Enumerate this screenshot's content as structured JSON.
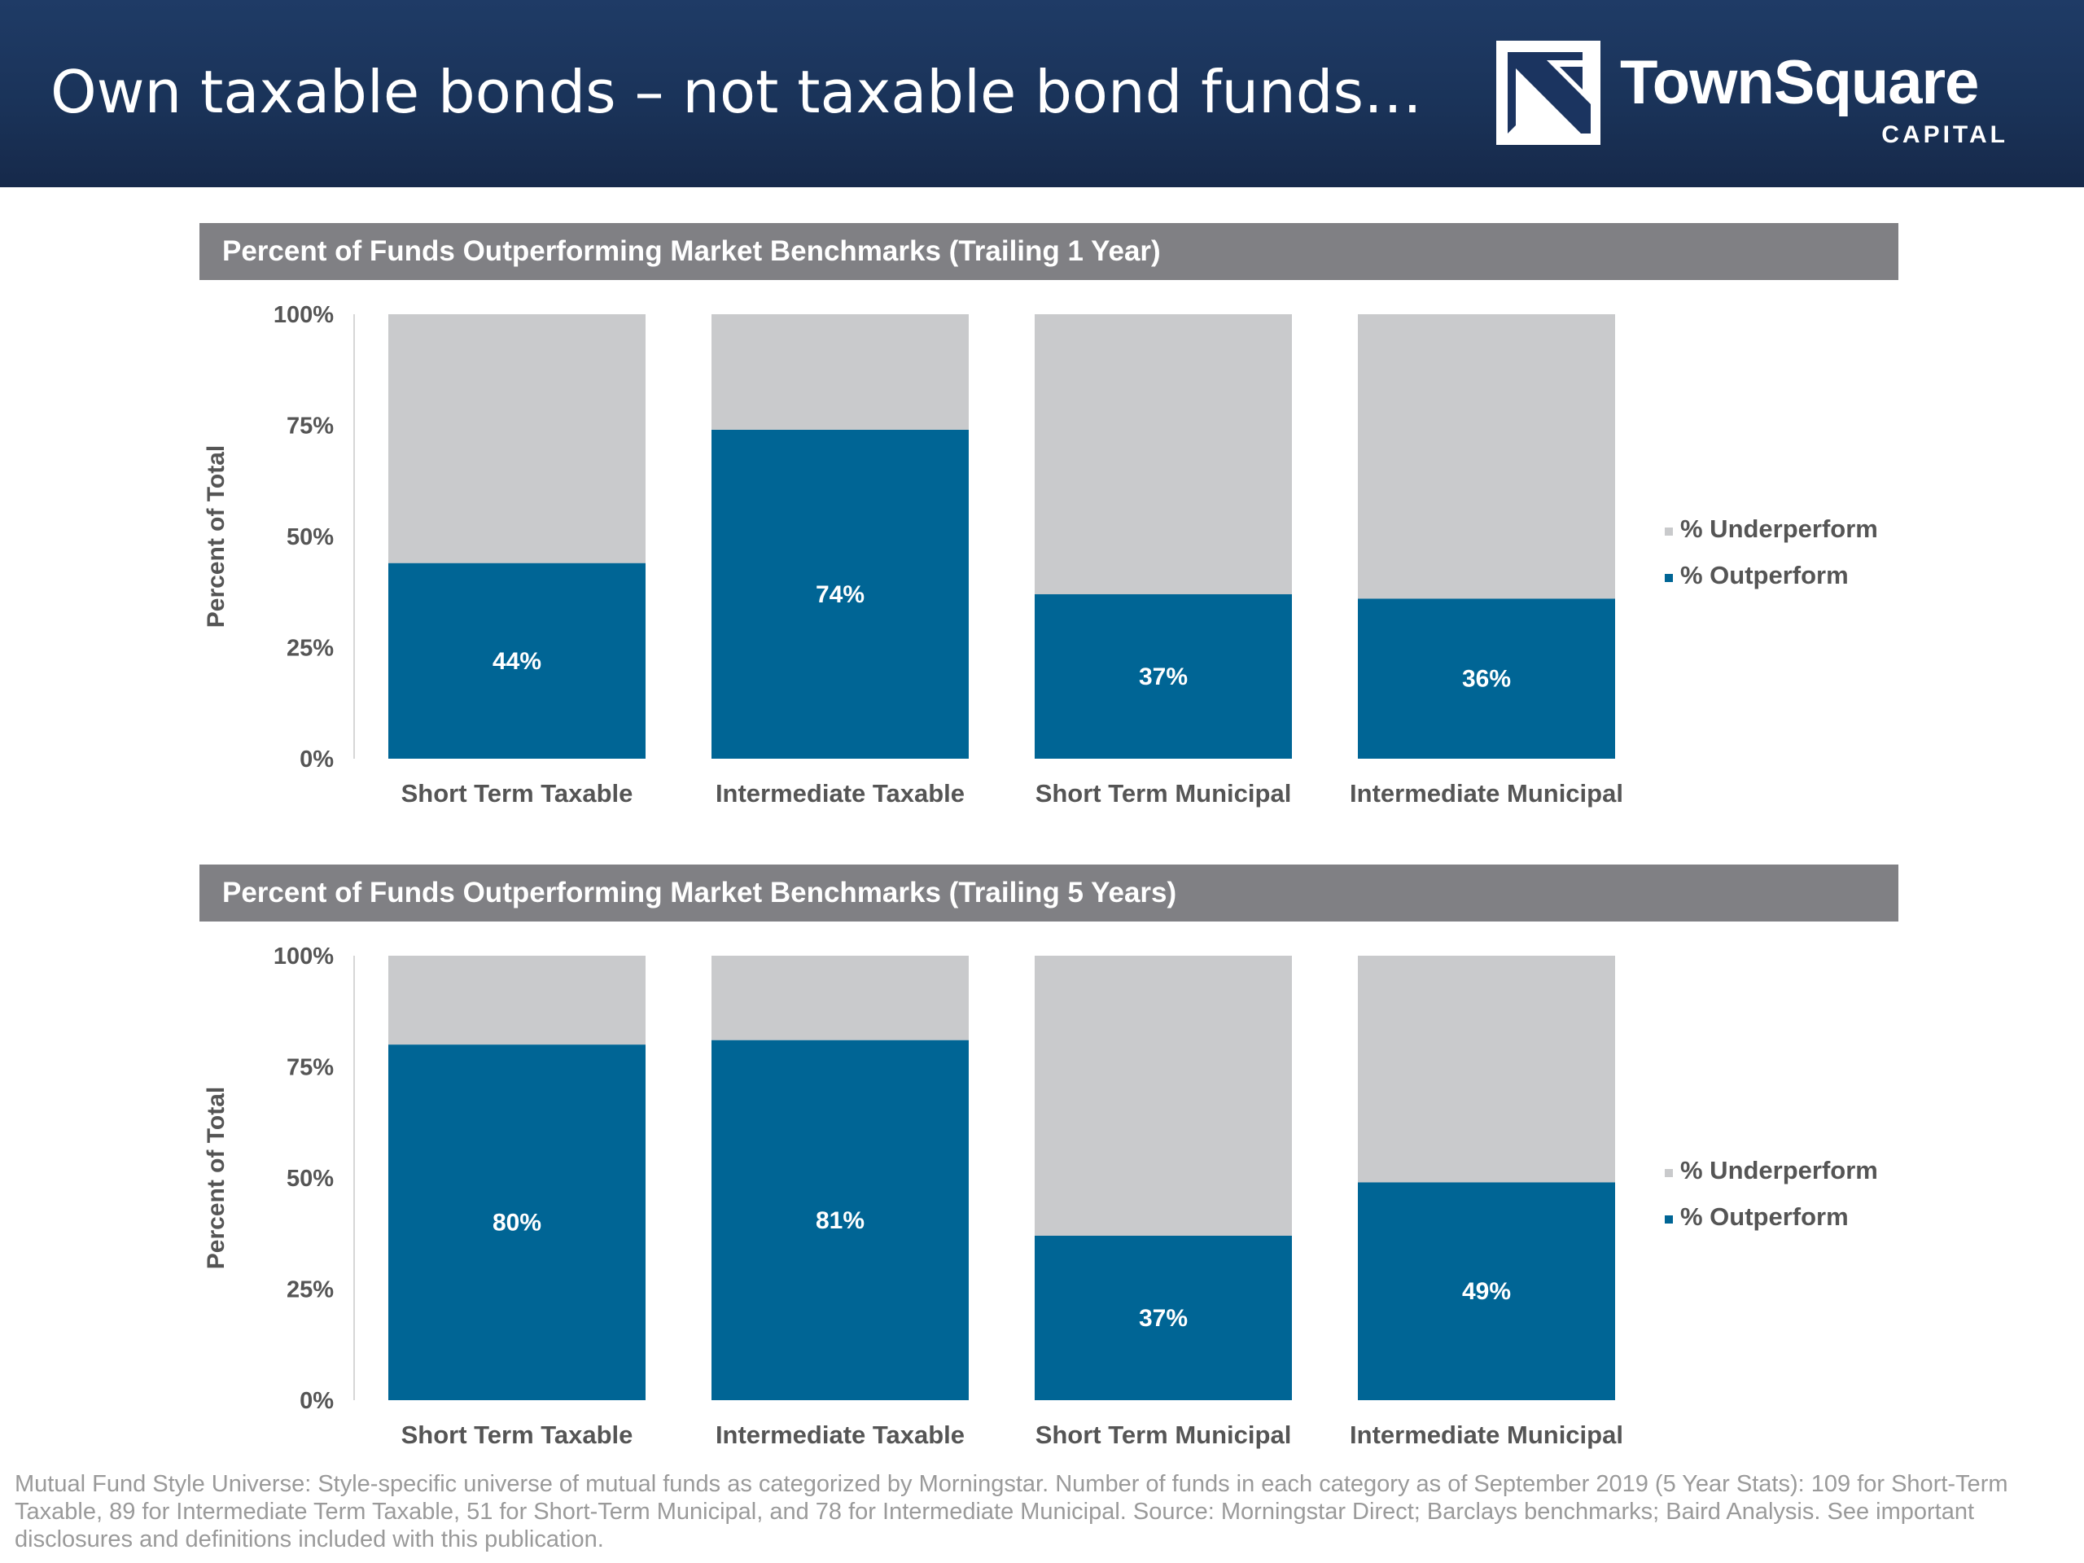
{
  "header": {
    "title": "Own taxable bonds – not taxable bond funds…",
    "logo_name": "TownSquare",
    "logo_sub": "CAPITAL",
    "logo_icon": "townsquare-logo-icon"
  },
  "colors": {
    "header_bg": "#1c365f",
    "panel_bar": "#808084",
    "outperform": "#006595",
    "underperform": "#c9cacc",
    "axis_text": "#555555",
    "footnote_text": "#9a9a9a"
  },
  "chart_data": [
    {
      "type": "bar",
      "stacked": true,
      "title": "Percent of Funds Outperforming Market Benchmarks (Trailing 1 Year)",
      "ylabel": "Percent of Total",
      "xlabel": "",
      "ylim": [
        0,
        100
      ],
      "yticks": [
        "0%",
        "25%",
        "50%",
        "75%",
        "100%"
      ],
      "categories": [
        "Short Term Taxable",
        "Intermediate Taxable",
        "Short Term Municipal",
        "Intermediate Municipal"
      ],
      "series": [
        {
          "name": "% Outperform",
          "values": [
            44,
            74,
            37,
            36
          ],
          "labels": [
            "44%",
            "74%",
            "37%",
            "36%"
          ]
        },
        {
          "name": "% Underperform",
          "values": [
            56,
            26,
            63,
            64
          ]
        }
      ],
      "legend": [
        "% Underperform",
        "% Outperform"
      ],
      "legend_position": "right",
      "grid": false
    },
    {
      "type": "bar",
      "stacked": true,
      "title": "Percent of Funds Outperforming Market Benchmarks (Trailing 5 Years)",
      "ylabel": "Percent of Total",
      "xlabel": "",
      "ylim": [
        0,
        100
      ],
      "yticks": [
        "0%",
        "25%",
        "50%",
        "75%",
        "100%"
      ],
      "categories": [
        "Short Term Taxable",
        "Intermediate Taxable",
        "Short Term Municipal",
        "Intermediate Municipal"
      ],
      "series": [
        {
          "name": "% Outperform",
          "values": [
            80,
            81,
            37,
            49
          ],
          "labels": [
            "80%",
            "81%",
            "37%",
            "49%"
          ]
        },
        {
          "name": "% Underperform",
          "values": [
            20,
            19,
            63,
            51
          ]
        }
      ],
      "legend": [
        "% Underperform",
        "% Outperform"
      ],
      "legend_position": "right",
      "grid": false
    }
  ],
  "footnote": "Mutual Fund Style Universe: Style-specific universe of mutual funds as categorized by Morningstar. Number of funds in each category as of September 2019 (5 Year Stats): 109 for Short-Term Taxable, 89 for Intermediate Term Taxable, 51 for Short-Term Municipal, and 78 for Intermediate Municipal. Source: Morningstar Direct; Barclays benchmarks; Baird Analysis. See important disclosures and definitions included with this publication."
}
